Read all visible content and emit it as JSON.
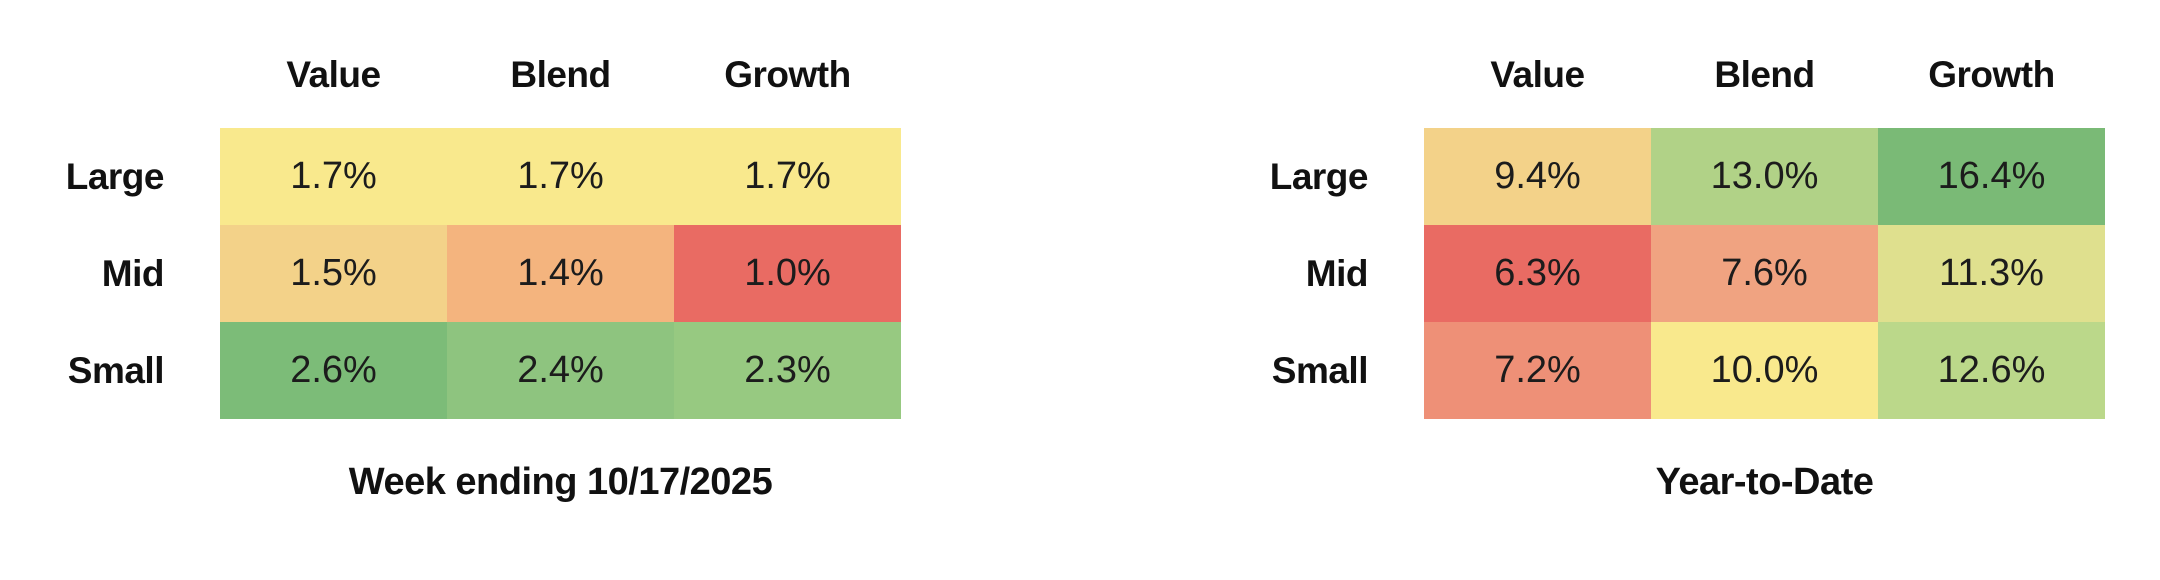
{
  "page": {
    "background": "#ffffff",
    "text_color": "#111111"
  },
  "chart_data": [
    {
      "type": "heatmap",
      "title": "Week ending 10/17/2025",
      "unit": "%",
      "columns": [
        "Value",
        "Blend",
        "Growth"
      ],
      "rows": [
        "Large",
        "Mid",
        "Small"
      ],
      "values": [
        [
          1.7,
          1.7,
          1.7
        ],
        [
          1.5,
          1.4,
          1.0
        ],
        [
          2.6,
          2.4,
          2.3
        ]
      ],
      "labels": [
        [
          "1.7%",
          "1.7%",
          "1.7%"
        ],
        [
          "1.5%",
          "1.4%",
          "1.0%"
        ],
        [
          "2.6%",
          "2.4%",
          "2.3%"
        ]
      ],
      "cell_colors": [
        [
          "#F9E98D",
          "#F9E98D",
          "#F9E98D"
        ],
        [
          "#F3D289",
          "#F4B47E",
          "#E96B63"
        ],
        [
          "#7CBC78",
          "#8EC47F",
          "#97C981"
        ]
      ],
      "colormap": "red-yellow-green (min=red, max=green)",
      "value_range": [
        1.0,
        2.6
      ],
      "legend": "none",
      "grid": "off"
    },
    {
      "type": "heatmap",
      "title": "Year-to-Date",
      "unit": "%",
      "columns": [
        "Value",
        "Blend",
        "Growth"
      ],
      "rows": [
        "Large",
        "Mid",
        "Small"
      ],
      "values": [
        [
          9.4,
          13.0,
          16.4
        ],
        [
          6.3,
          7.6,
          11.3
        ],
        [
          7.2,
          10.0,
          12.6
        ]
      ],
      "labels": [
        [
          "9.4%",
          "13.0%",
          "16.4%"
        ],
        [
          "6.3%",
          "7.6%",
          "11.3%"
        ],
        [
          "7.2%",
          "10.0%",
          "12.6%"
        ]
      ],
      "cell_colors": [
        [
          "#F3D289",
          "#B1D287",
          "#7ABA76"
        ],
        [
          "#E96B63",
          "#F0A381",
          "#DFE08E"
        ],
        [
          "#EE9077",
          "#F9E98D",
          "#BBD88A"
        ]
      ],
      "colormap": "red-yellow-green (min=red, max=green)",
      "value_range": [
        6.3,
        16.4
      ],
      "legend": "none",
      "grid": "off"
    }
  ]
}
